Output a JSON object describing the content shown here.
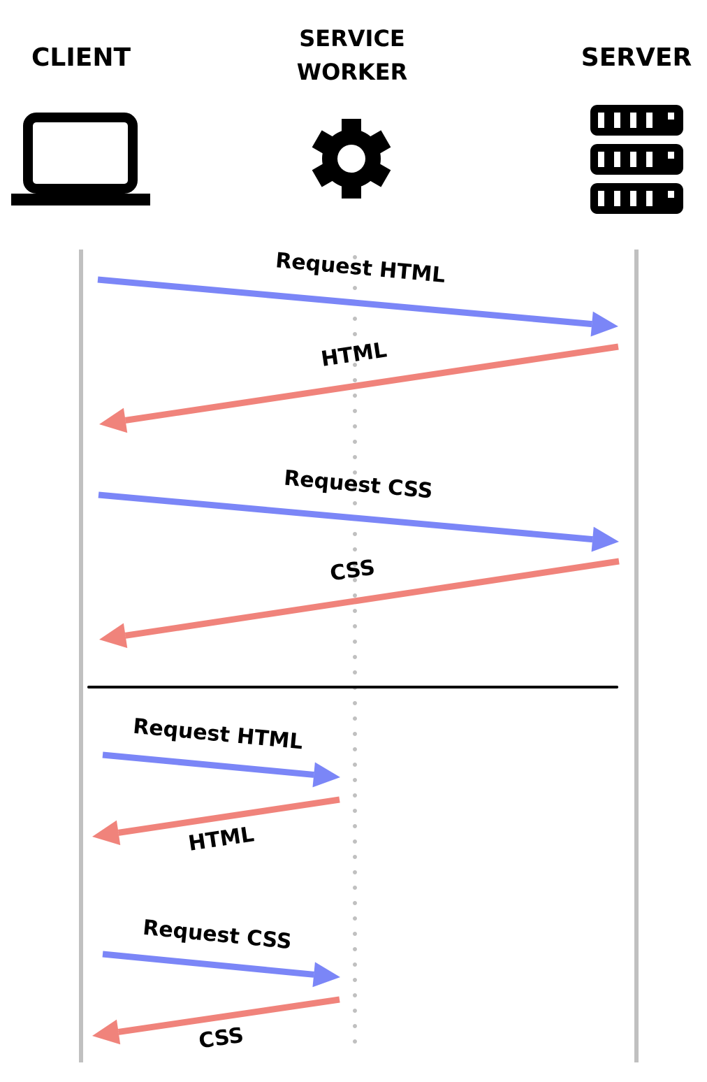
{
  "headers": {
    "client": "CLIENT",
    "service_worker_line1": "SERVICE",
    "service_worker_line2": "WORKER",
    "server": "SERVER"
  },
  "icons": {
    "client": "laptop-icon",
    "service_worker": "gear-icon",
    "server": "server-rack-icon"
  },
  "colors": {
    "request": "#7b86f7",
    "response": "#f0837b",
    "lifeline": "#c0c0c0"
  },
  "messages": [
    {
      "label": "Request HTML",
      "type": "request",
      "from": "client",
      "to": "server"
    },
    {
      "label": "HTML",
      "type": "response",
      "from": "server",
      "to": "client"
    },
    {
      "label": "Request CSS",
      "type": "request",
      "from": "client",
      "to": "server"
    },
    {
      "label": "CSS",
      "type": "response",
      "from": "server",
      "to": "client"
    },
    {
      "label": "Request HTML",
      "type": "request",
      "from": "client",
      "to": "service_worker"
    },
    {
      "label": "HTML",
      "type": "response",
      "from": "service_worker",
      "to": "client"
    },
    {
      "label": "Request CSS",
      "type": "request",
      "from": "client",
      "to": "service_worker"
    },
    {
      "label": "CSS",
      "type": "response",
      "from": "service_worker",
      "to": "client"
    }
  ]
}
